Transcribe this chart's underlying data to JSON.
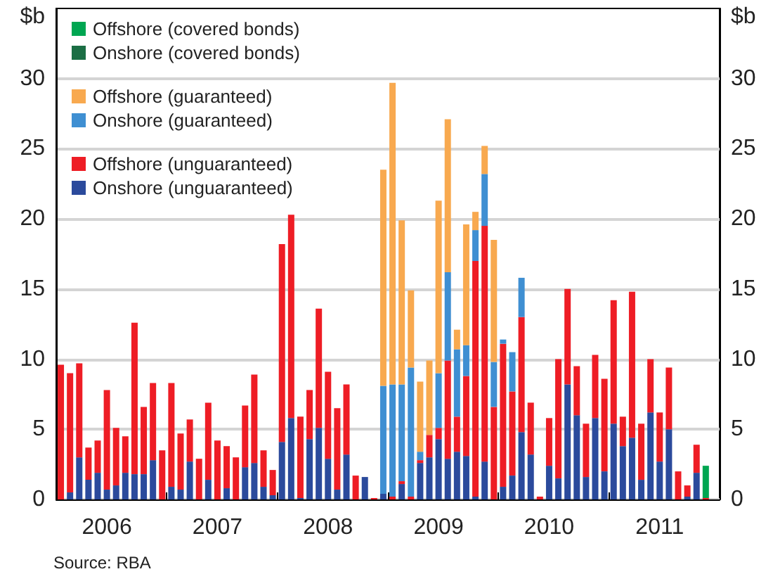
{
  "chart_data": {
    "type": "bar",
    "stacked": true,
    "ylabel": "$b",
    "y2label": "$b",
    "categories": [
      null,
      null,
      null,
      null,
      null,
      "2006",
      null,
      null,
      null,
      null,
      null,
      null,
      null,
      null,
      null,
      null,
      null,
      "2007",
      null,
      null,
      null,
      null,
      null,
      null,
      null,
      null,
      null,
      null,
      null,
      "2008",
      null,
      null,
      null,
      null,
      null,
      null,
      null,
      null,
      null,
      null,
      null,
      "2009",
      null,
      null,
      null,
      null,
      null,
      null,
      null,
      null,
      null,
      null,
      null,
      "2010",
      null,
      null,
      null,
      null,
      null,
      null,
      null,
      null,
      null,
      null,
      null,
      "2011",
      null,
      null,
      null,
      null,
      null,
      null
    ],
    "series": [
      {
        "name": "Onshore (unguaranteed)",
        "color": "#2b4a9c",
        "values": [
          null,
          0.5,
          3.0,
          1.4,
          1.9,
          0.7,
          1.0,
          1.9,
          1.8,
          1.8,
          2.8,
          null,
          0.9,
          0.7,
          2.7,
          null,
          1.4,
          null,
          0.8,
          null,
          2.3,
          2.6,
          0.9,
          0.3,
          4.1,
          5.8,
          0.1,
          4.3,
          5.1,
          2.9,
          0.7,
          3.2,
          null,
          1.6,
          null,
          0.4,
          null,
          1.1,
          null,
          2.6,
          3.0,
          4.3,
          2.9,
          3.4,
          3.1,
          0.2,
          2.7,
          null,
          0.9,
          1.7,
          4.8,
          3.2,
          null,
          2.4,
          1.5,
          8.2,
          6.0,
          1.6,
          5.8,
          2.0,
          5.4,
          3.8,
          4.4,
          1.4,
          6.2,
          2.7,
          5.0,
          null,
          0.2,
          1.9,
          null,
          null
        ]
      },
      {
        "name": "Offshore (unguaranteed)",
        "color": "#ee1d25",
        "values": [
          9.6,
          8.5,
          6.7,
          2.3,
          2.3,
          7.1,
          4.1,
          2.6,
          10.8,
          4.8,
          5.5,
          3.5,
          7.4,
          4.0,
          3.0,
          2.9,
          5.5,
          4.2,
          3.0,
          3.0,
          4.4,
          6.3,
          2.6,
          1.8,
          14.1,
          14.5,
          5.8,
          3.5,
          8.5,
          6.2,
          5.8,
          5.0,
          1.7,
          null,
          0.1,
          null,
          0.2,
          0.2,
          0.2,
          0.2,
          1.6,
          0.8,
          7.0,
          2.5,
          5.7,
          16.8,
          16.8,
          6.6,
          10.2,
          6.0,
          8.2,
          3.7,
          0.2,
          3.4,
          8.5,
          6.8,
          3.5,
          3.8,
          4.5,
          6.6,
          8.8,
          2.1,
          10.4,
          4.0,
          3.8,
          3.5,
          4.4,
          2.0,
          0.8,
          2.0,
          0.1,
          null
        ]
      },
      {
        "name": "Onshore (guaranteed)",
        "color": "#3f8fd2",
        "values": [
          null,
          null,
          null,
          null,
          null,
          null,
          null,
          null,
          null,
          null,
          null,
          null,
          null,
          null,
          null,
          null,
          null,
          null,
          null,
          null,
          null,
          null,
          null,
          null,
          null,
          null,
          null,
          null,
          null,
          null,
          null,
          null,
          null,
          null,
          null,
          7.7,
          8.0,
          6.9,
          9.2,
          0.6,
          null,
          3.9,
          6.3,
          4.8,
          2.2,
          2.2,
          3.7,
          3.2,
          0.3,
          2.8,
          2.8,
          null,
          null,
          null,
          null,
          null,
          null,
          null,
          null,
          null,
          null,
          null,
          null,
          null,
          null,
          null,
          null,
          null,
          null,
          null,
          null,
          null
        ]
      },
      {
        "name": "Offshore (guaranteed)",
        "color": "#f8a94f",
        "values": [
          null,
          null,
          null,
          null,
          null,
          null,
          null,
          null,
          null,
          null,
          null,
          null,
          null,
          null,
          null,
          null,
          null,
          null,
          null,
          null,
          null,
          null,
          null,
          null,
          null,
          null,
          null,
          null,
          null,
          null,
          null,
          null,
          null,
          null,
          null,
          15.4,
          21.5,
          11.7,
          5.5,
          5.0,
          5.3,
          12.3,
          10.9,
          1.4,
          8.6,
          1.3,
          2.0,
          8.7,
          null,
          null,
          null,
          null,
          null,
          null,
          null,
          null,
          null,
          null,
          null,
          null,
          null,
          null,
          null,
          null,
          null,
          null,
          null,
          null,
          null,
          null,
          null,
          null
        ]
      },
      {
        "name": "Onshore (covered bonds)",
        "color": "#1b6e44",
        "values": [
          null,
          null,
          null,
          null,
          null,
          null,
          null,
          null,
          null,
          null,
          null,
          null,
          null,
          null,
          null,
          null,
          null,
          null,
          null,
          null,
          null,
          null,
          null,
          null,
          null,
          null,
          null,
          null,
          null,
          null,
          null,
          null,
          null,
          null,
          null,
          null,
          null,
          null,
          null,
          null,
          null,
          null,
          null,
          null,
          null,
          null,
          null,
          null,
          null,
          null,
          null,
          null,
          null,
          null,
          null,
          null,
          null,
          null,
          null,
          null,
          null,
          null,
          null,
          null,
          null,
          null,
          null,
          null,
          null,
          null,
          null,
          null
        ]
      },
      {
        "name": "Offshore (covered bonds)",
        "color": "#00a651",
        "values": [
          null,
          null,
          null,
          null,
          null,
          null,
          null,
          null,
          null,
          null,
          null,
          null,
          null,
          null,
          null,
          null,
          null,
          null,
          null,
          null,
          null,
          null,
          null,
          null,
          null,
          null,
          null,
          null,
          null,
          null,
          null,
          null,
          null,
          null,
          null,
          null,
          null,
          null,
          null,
          null,
          null,
          null,
          null,
          null,
          null,
          null,
          null,
          null,
          null,
          null,
          null,
          null,
          null,
          null,
          null,
          null,
          null,
          null,
          null,
          null,
          null,
          null,
          null,
          null,
          null,
          null,
          null,
          null,
          null,
          null,
          2.3,
          null
        ]
      }
    ],
    "ylim": [
      0,
      35
    ],
    "yticks": [
      0,
      5,
      10,
      15,
      20,
      25,
      30
    ],
    "y2lim": [
      0,
      35
    ],
    "y2ticks": [
      0,
      5,
      10,
      15,
      20,
      25,
      30
    ],
    "grid": "y",
    "legend": "top left",
    "annotations": [
      "Source: RBA"
    ]
  }
}
